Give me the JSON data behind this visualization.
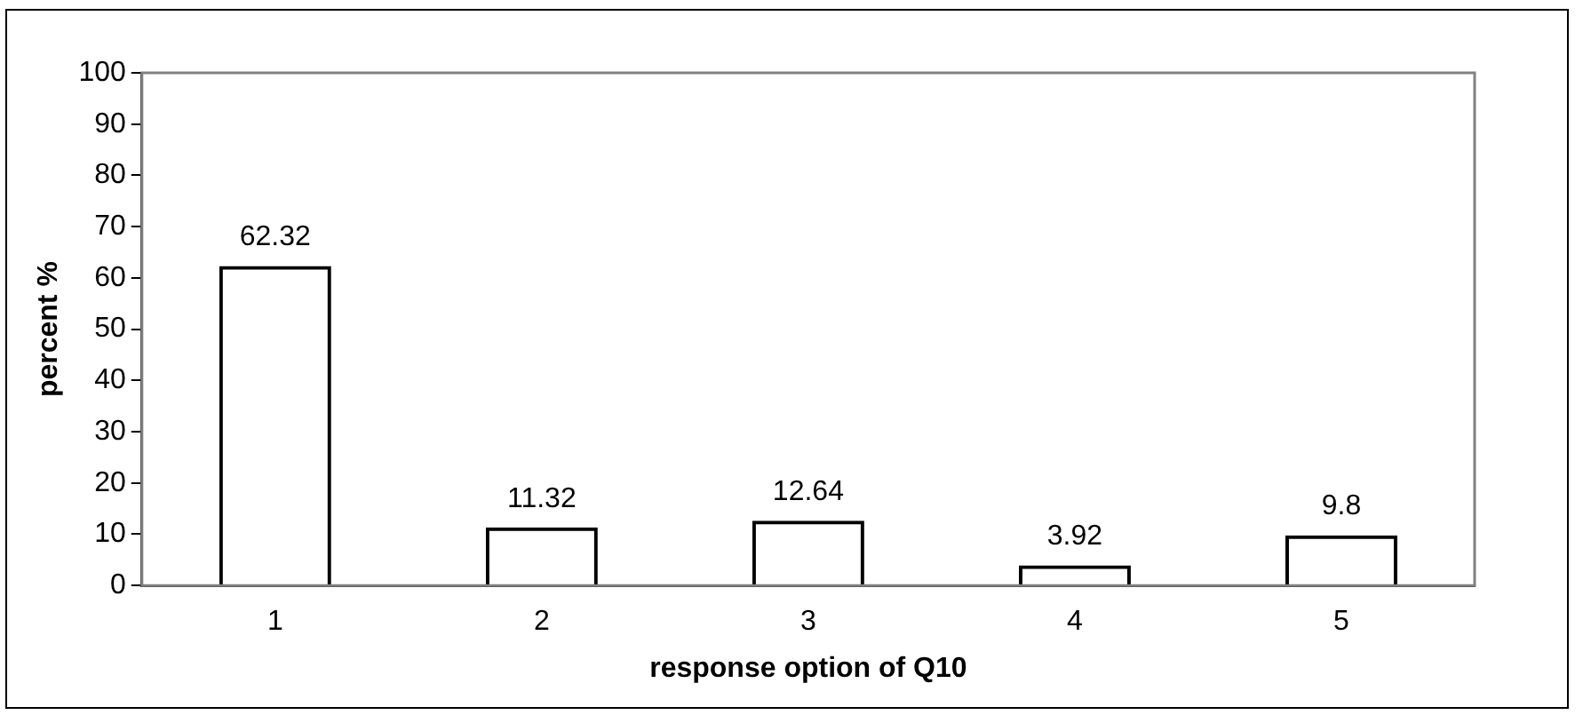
{
  "chart_data": {
    "type": "bar",
    "xlabel": "response option of Q10",
    "ylabel": "percent %",
    "categories": [
      "1",
      "2",
      "3",
      "4",
      "5"
    ],
    "values": [
      62.32,
      11.32,
      12.64,
      3.92,
      9.8
    ],
    "color": "#000000",
    "ylim": [
      0,
      100
    ],
    "yticks": [
      0,
      10,
      20,
      30,
      40,
      50,
      60,
      70,
      80,
      90,
      100
    ],
    "grid": false,
    "legend": false,
    "data_labels": true
  }
}
